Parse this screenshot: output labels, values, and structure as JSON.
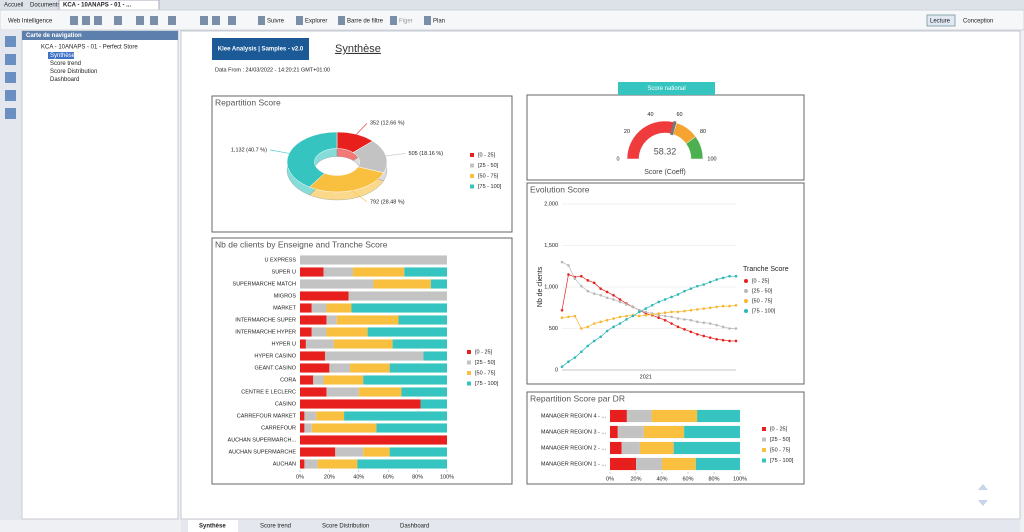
{
  "tabs": [
    "Accueil",
    "Documents",
    "KCA - 10ANAPS - 01 - ..."
  ],
  "toolbar": {
    "app": "Web Intelligence",
    "buttons": [
      "Suivre",
      "Explorer",
      "Barre de filtre",
      "Figer",
      "Plan"
    ],
    "modes": [
      "Lecture",
      "Conception"
    ]
  },
  "navigation": {
    "title": "Carte de navigation",
    "document": "KCA - 10ANAPS - 01 - Perfect Store",
    "items": [
      "Synthèse",
      "Score trend",
      "Score Distribution",
      "Dashboard"
    ]
  },
  "report": {
    "badge": "Klee Analysis | Samples - v2.0",
    "title": "Synthèse",
    "data_from": "Data From : 24/03/2022 - 14:20:21 GMT+01:00",
    "charts": [
      {
        "type": "pie",
        "title": "Repartition Score",
        "categories": [
          "[0 - 25]",
          "[25 - 50]",
          "[50 - 75]",
          "[75 - 100]"
        ],
        "values": [
          352,
          505,
          792,
          1132
        ],
        "value_labels": [
          "352 (12.66 %)",
          "505 (18.16 %)",
          "792 (28.48 %)",
          "1,132 (40.7 %)"
        ],
        "colors": [
          "#e8201d",
          "#c3c3c3",
          "#f9c040",
          "#35c4c0"
        ]
      },
      {
        "type": "gauge",
        "title": "Score national",
        "label": "Score (Coeff)",
        "value": 58.32,
        "lim": [
          0,
          100
        ],
        "ticks": [
          0,
          20,
          40,
          60,
          80,
          100
        ],
        "bands": [
          {
            "from": 0,
            "to": 60,
            "color": "#ef3b3b"
          },
          {
            "from": 60,
            "to": 80,
            "color": "#f5a431"
          },
          {
            "from": 80,
            "to": 100,
            "color": "#4caf50"
          }
        ]
      },
      {
        "type": "bar",
        "title": "Nb de clients by Enseigne and Tranche Score",
        "horizontal": true,
        "stacked": true,
        "categories": [
          "U EXPRESS",
          "SUPER U",
          "SUPERMARCHE MATCH",
          "MIGROS",
          "MARKET",
          "INTERMARCHE SUPER",
          "INTERMARCHE HYPER",
          "HYPER U",
          "HYPER CASINO",
          "GEANT CASINO",
          "CORA",
          "CENTRE E LECLERC",
          "CASINO",
          "CARREFOUR MARKET",
          "CARREFOUR",
          "AUCHAN SUPERMARCH...",
          "AUCHAN SUPERMARCHE",
          "AUCHAN"
        ],
        "series": [
          {
            "name": "[0 - 25]",
            "color": "#e8201d",
            "values": [
              0,
              16,
              0,
              33,
              8,
              18,
              8,
              4,
              17,
              20,
              9,
              18,
              82,
              3,
              3,
              100,
              24,
              3
            ]
          },
          {
            "name": "[25 - 50]",
            "color": "#c3c3c3",
            "values": [
              100,
              20,
              50,
              67,
              10,
              7,
              10,
              19,
              67,
              14,
              7,
              22,
              0,
              8,
              5,
              0,
              19,
              9
            ]
          },
          {
            "name": "[50 - 75]",
            "color": "#f9c040",
            "values": [
              0,
              35,
              39,
              0,
              17,
              42,
              28,
              40,
              0,
              27,
              27,
              29,
              0,
              19,
              44,
              0,
              18,
              27
            ]
          },
          {
            "name": "[75 - 100]",
            "color": "#35c4c0",
            "values": [
              0,
              29,
              11,
              0,
              65,
              33,
              54,
              37,
              16,
              39,
              57,
              31,
              18,
              70,
              48,
              0,
              39,
              61
            ]
          }
        ],
        "xlim": [
          0,
          100
        ],
        "xticks": [
          {
            "value": 0,
            "label": "0%"
          },
          {
            "value": 20,
            "label": "20%"
          },
          {
            "value": 40,
            "label": "40%"
          },
          {
            "value": 60,
            "label": "60%"
          },
          {
            "value": 80,
            "label": "80%"
          },
          {
            "value": 100,
            "label": "100%"
          }
        ]
      },
      {
        "type": "line",
        "title": "Evolution Score",
        "y_label": "Nb de clients",
        "legend_title": "Tranche Score",
        "markers": true,
        "grid": true,
        "categories": [
          null,
          null,
          null,
          null,
          null,
          null,
          null,
          null,
          null,
          null,
          null,
          null,
          null,
          "2021",
          null,
          null,
          null,
          null,
          null,
          null,
          null,
          null,
          null,
          null,
          null,
          null,
          null,
          null
        ],
        "series": [
          {
            "name": "[0 - 25]",
            "color": "#e8201d",
            "values": [
              720,
              1150,
              1120,
              1130,
              1080,
              1050,
              980,
              940,
              900,
              850,
              800,
              760,
              720,
              680,
              660,
              630,
              600,
              560,
              520,
              490,
              460,
              430,
              410,
              390,
              370,
              360,
              350,
              350
            ]
          },
          {
            "name": "[25 - 50]",
            "color": "#b8b8b8",
            "values": [
              1300,
              1260,
              1100,
              1010,
              950,
              920,
              900,
              870,
              850,
              820,
              790,
              760,
              720,
              700,
              680,
              660,
              650,
              640,
              620,
              610,
              600,
              580,
              570,
              560,
              540,
              520,
              500,
              500
            ]
          },
          {
            "name": "[50 - 75]",
            "color": "#f9b530",
            "values": [
              630,
              640,
              650,
              500,
              520,
              560,
              580,
              600,
              620,
              640,
              650,
              660,
              650,
              660,
              670,
              680,
              690,
              700,
              700,
              710,
              720,
              730,
              740,
              750,
              760,
              770,
              770,
              780
            ]
          },
          {
            "name": "[75 - 100]",
            "color": "#2ab8b4",
            "values": [
              40,
              100,
              150,
              220,
              290,
              350,
              400,
              470,
              520,
              560,
              610,
              650,
              700,
              740,
              780,
              820,
              850,
              880,
              910,
              950,
              980,
              1010,
              1030,
              1060,
              1090,
              1110,
              1130,
              1130
            ]
          }
        ],
        "ylim": [
          0,
          2000
        ],
        "yticks": [
          0,
          500,
          {
            "value": 1000,
            "label": "1,000"
          },
          {
            "value": 1500,
            "label": "1,500"
          },
          {
            "value": 2000,
            "label": "2,000"
          }
        ]
      },
      {
        "type": "bar",
        "title": "Repartition Score par DR",
        "horizontal": true,
        "stacked": true,
        "categories": [
          "MANAGER REGION 4 - ...",
          "MANAGER REGION 3 - ...",
          "MANAGER REGION 2 - ...",
          "MANAGER REGION 1 - ..."
        ],
        "series": [
          {
            "name": "[0 - 25]",
            "color": "#e8201d",
            "values": [
              13,
              6,
              9,
              20
            ]
          },
          {
            "name": "[25 - 50]",
            "color": "#c3c3c3",
            "values": [
              19,
              20,
              14,
              20
            ]
          },
          {
            "name": "[50 - 75]",
            "color": "#f9c040",
            "values": [
              35,
              31,
              26,
              26
            ]
          },
          {
            "name": "[75 - 100]",
            "color": "#35c4c0",
            "values": [
              33,
              43,
              51,
              34
            ]
          }
        ],
        "xlim": [
          0,
          100
        ],
        "xticks": [
          {
            "value": 0,
            "label": "0%"
          },
          {
            "value": 20,
            "label": "20%"
          },
          {
            "value": 40,
            "label": "40%"
          },
          {
            "value": 60,
            "label": "60%"
          },
          {
            "value": 80,
            "label": "80%"
          },
          {
            "value": 100,
            "label": "100%"
          }
        ]
      }
    ]
  },
  "report_tabs": [
    "Synthèse",
    "Score trend",
    "Score Distribution",
    "Dashboard"
  ]
}
